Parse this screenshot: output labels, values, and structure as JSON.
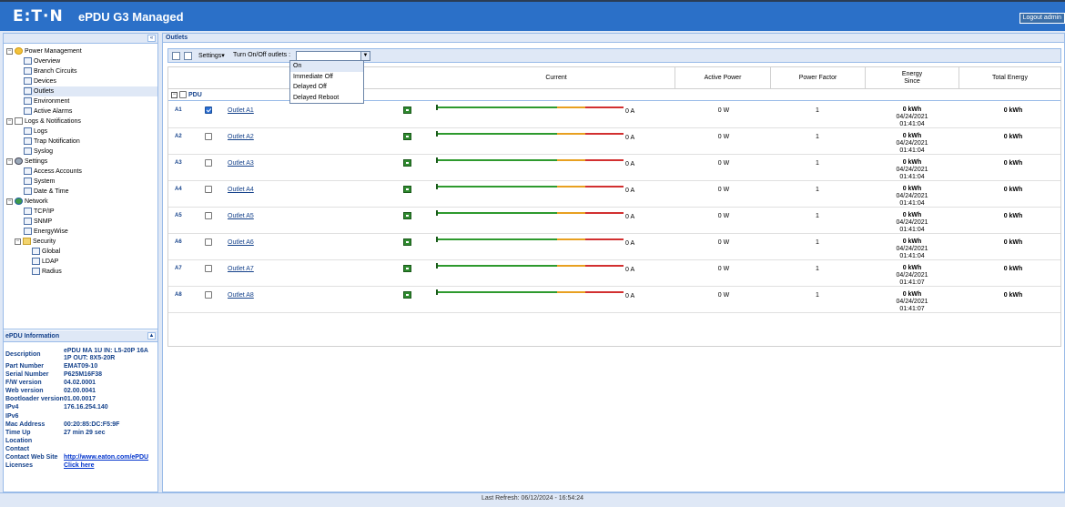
{
  "header": {
    "logo_text": "E:T·N",
    "app_title": "ePDU G3 Managed",
    "logout_label": "Logout admin"
  },
  "tree": {
    "items": [
      {
        "label": "Power Management"
      },
      {
        "label": "Overview"
      },
      {
        "label": "Branch Circuits"
      },
      {
        "label": "Devices"
      },
      {
        "label": "Outlets"
      },
      {
        "label": "Environment"
      },
      {
        "label": "Active Alarms"
      },
      {
        "label": "Logs & Notifications"
      },
      {
        "label": "Logs"
      },
      {
        "label": "Trap Notification"
      },
      {
        "label": "Syslog"
      },
      {
        "label": "Settings"
      },
      {
        "label": "Access Accounts"
      },
      {
        "label": "System"
      },
      {
        "label": "Date & Time"
      },
      {
        "label": "Network"
      },
      {
        "label": "TCP/IP"
      },
      {
        "label": "SNMP"
      },
      {
        "label": "EnergyWise"
      },
      {
        "label": "Security"
      },
      {
        "label": "Global"
      },
      {
        "label": "LDAP"
      },
      {
        "label": "Radius"
      }
    ]
  },
  "info": {
    "title": "ePDU Information",
    "rows": [
      {
        "k": "Description",
        "v": "ePDU MA 1U IN: L5-20P 16A"
      },
      {
        "k": "",
        "v": "1P OUT: 8X5-20R"
      },
      {
        "k": "Part Number",
        "v": "EMAT09-10"
      },
      {
        "k": "Serial Number",
        "v": "P625M16F38"
      },
      {
        "k": "F/W version",
        "v": "04.02.0001"
      },
      {
        "k": "Web version",
        "v": "02.00.0041"
      },
      {
        "k": "Bootloader version",
        "v": "01.00.0017"
      },
      {
        "k": "IPv4",
        "v": "176.16.254.140"
      },
      {
        "k": "IPv6",
        "v": ""
      },
      {
        "k": "Mac Address",
        "v": "00:20:85:DC:F5:9F"
      },
      {
        "k": "Time Up",
        "v": "27 min 29 sec"
      },
      {
        "k": "Location",
        "v": ""
      },
      {
        "k": "Contact",
        "v": ""
      },
      {
        "k": "Contact Web Site",
        "v": "http://www.eaton.com/ePDU"
      },
      {
        "k": "Licenses",
        "v": "Click here"
      }
    ]
  },
  "main": {
    "title": "Outlets",
    "toolbar": {
      "settings_label": "Settings",
      "turn_label": "Turn On/Off outlets :",
      "select_value": ""
    },
    "dropdown": [
      "On",
      "Immediate Off",
      "Delayed Off",
      "Delayed Reboot"
    ],
    "columns": {
      "current": "Current",
      "active_power": "Active Power",
      "power_factor": "Power Factor",
      "energy": "Energy",
      "energy_since": "Since",
      "total_energy": "Total Energy"
    },
    "group_label": "PDU",
    "outlets": [
      {
        "id": "A1",
        "name": "Outlet A1",
        "checked": true,
        "current": "0 A",
        "power": "0 W",
        "pf": "1",
        "energy": "0 kWh",
        "date": "04/24/2021",
        "time": "01:41:04",
        "total": "0 kWh"
      },
      {
        "id": "A2",
        "name": "Outlet A2",
        "checked": false,
        "current": "0 A",
        "power": "0 W",
        "pf": "1",
        "energy": "0 kWh",
        "date": "04/24/2021",
        "time": "01:41:04",
        "total": "0 kWh"
      },
      {
        "id": "A3",
        "name": "Outlet A3",
        "checked": false,
        "current": "0 A",
        "power": "0 W",
        "pf": "1",
        "energy": "0 kWh",
        "date": "04/24/2021",
        "time": "01:41:04",
        "total": "0 kWh"
      },
      {
        "id": "A4",
        "name": "Outlet A4",
        "checked": false,
        "current": "0 A",
        "power": "0 W",
        "pf": "1",
        "energy": "0 kWh",
        "date": "04/24/2021",
        "time": "01:41:04",
        "total": "0 kWh"
      },
      {
        "id": "A5",
        "name": "Outlet A5",
        "checked": false,
        "current": "0 A",
        "power": "0 W",
        "pf": "1",
        "energy": "0 kWh",
        "date": "04/24/2021",
        "time": "01:41:04",
        "total": "0 kWh"
      },
      {
        "id": "A6",
        "name": "Outlet A6",
        "checked": false,
        "current": "0 A",
        "power": "0 W",
        "pf": "1",
        "energy": "0 kWh",
        "date": "04/24/2021",
        "time": "01:41:04",
        "total": "0 kWh"
      },
      {
        "id": "A7",
        "name": "Outlet A7",
        "checked": false,
        "current": "0 A",
        "power": "0 W",
        "pf": "1",
        "energy": "0 kWh",
        "date": "04/24/2021",
        "time": "01:41:07",
        "total": "0 kWh"
      },
      {
        "id": "A8",
        "name": "Outlet A8",
        "checked": false,
        "current": "0 A",
        "power": "0 W",
        "pf": "1",
        "energy": "0 kWh",
        "date": "04/24/2021",
        "time": "01:41:07",
        "total": "0 kWh"
      }
    ]
  },
  "status": {
    "refresh": "Last Refresh: 06/12/2024 - 16:54:24"
  }
}
